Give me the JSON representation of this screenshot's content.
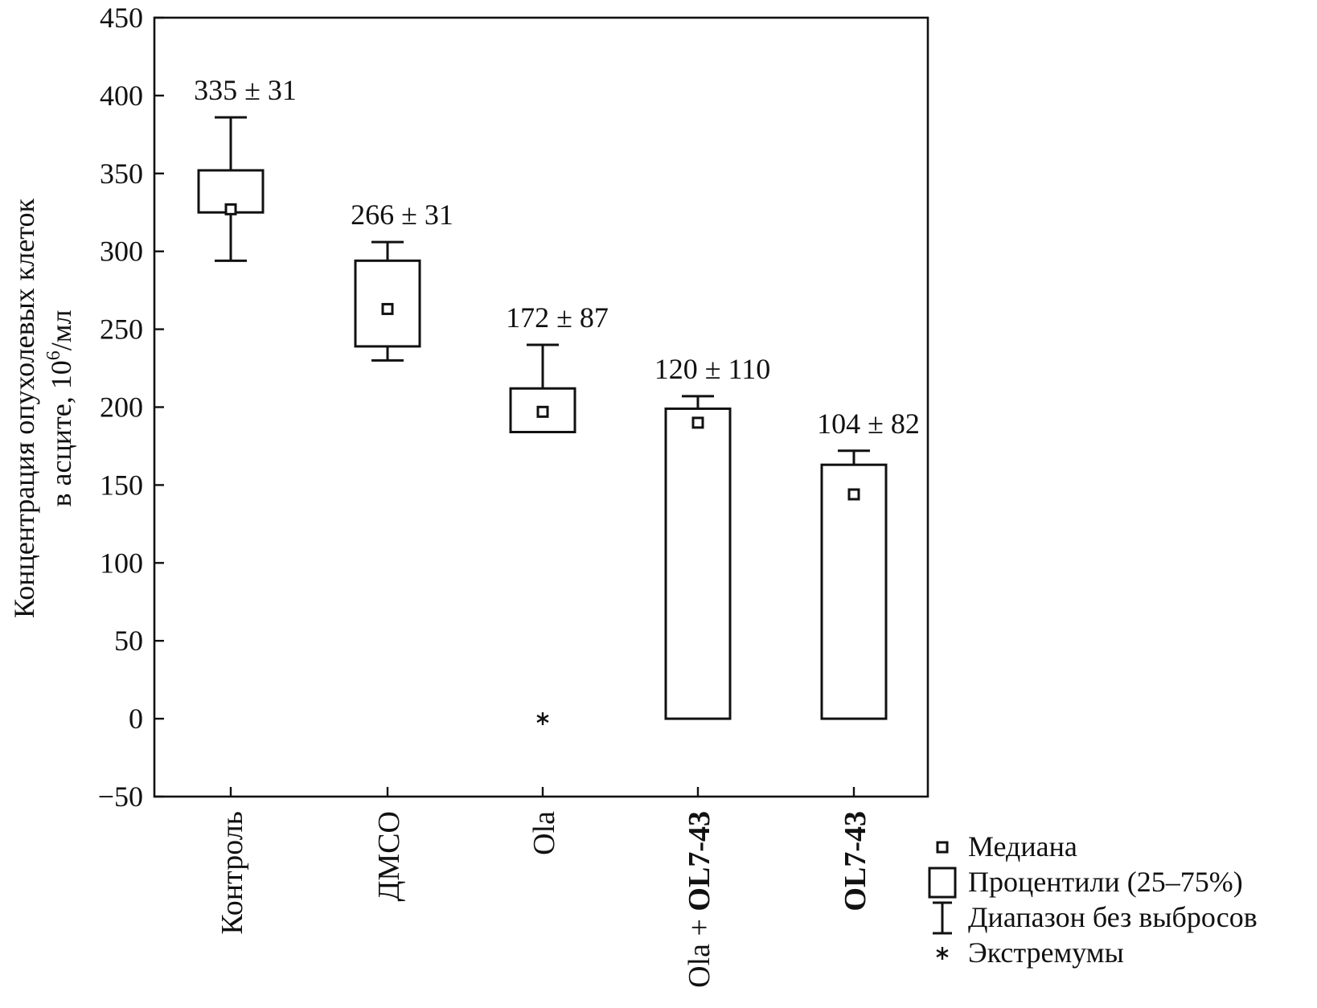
{
  "chart_data": {
    "type": "box",
    "title": "",
    "ylabel_line1": "Концентрация опухолевых клеток",
    "ylabel_line2_prefix": "в асците, 10",
    "ylabel_line2_sup": "6",
    "ylabel_line2_suffix": "/мл",
    "xlabel": "",
    "ylim": [
      -50,
      450
    ],
    "yticks": [
      -50,
      0,
      50,
      100,
      150,
      200,
      250,
      300,
      350,
      400,
      450
    ],
    "ytick_labels": [
      "−50",
      "0",
      "50",
      "100",
      "150",
      "200",
      "250",
      "300",
      "350",
      "400",
      "450"
    ],
    "grid": false,
    "legend_position": "bottom-right outside",
    "categories": [
      {
        "label_parts": [
          {
            "text": "Контроль",
            "bold": false
          }
        ]
      },
      {
        "label_parts": [
          {
            "text": "ДМСО",
            "bold": false
          }
        ]
      },
      {
        "label_parts": [
          {
            "text": "Ola",
            "bold": false
          }
        ]
      },
      {
        "label_parts": [
          {
            "text": "Ola + ",
            "bold": false
          },
          {
            "text": "OL7-43",
            "bold": true
          }
        ]
      },
      {
        "label_parts": [
          {
            "text": "OL7-43",
            "bold": true
          }
        ]
      }
    ],
    "boxes": [
      {
        "q1": 325,
        "q3": 352,
        "median": 327,
        "whisker_low": 294,
        "whisker_high": 386,
        "extremes": [],
        "annotation": "335 ± 31"
      },
      {
        "q1": 239,
        "q3": 294,
        "median": 263,
        "whisker_low": 230,
        "whisker_high": 306,
        "extremes": [],
        "annotation": "266 ± 31"
      },
      {
        "q1": 184,
        "q3": 212,
        "median": 197,
        "whisker_low": null,
        "whisker_high": 240,
        "extremes": [
          0
        ],
        "annotation": "172 ± 87"
      },
      {
        "q1": 0,
        "q3": 199,
        "median": 190,
        "whisker_low": null,
        "whisker_high": 207,
        "extremes": [],
        "annotation": "120 ± 110"
      },
      {
        "q1": 0,
        "q3": 163,
        "median": 144,
        "whisker_low": null,
        "whisker_high": 172,
        "extremes": [],
        "annotation": "104 ± 82"
      }
    ],
    "legend": [
      {
        "symbol": "median",
        "label": "Медиана"
      },
      {
        "symbol": "box",
        "label": "Процентили (25–75%)"
      },
      {
        "symbol": "whisker",
        "label": "Диапазон без выбросов"
      },
      {
        "symbol": "extreme",
        "label": "Экстремумы"
      }
    ]
  }
}
